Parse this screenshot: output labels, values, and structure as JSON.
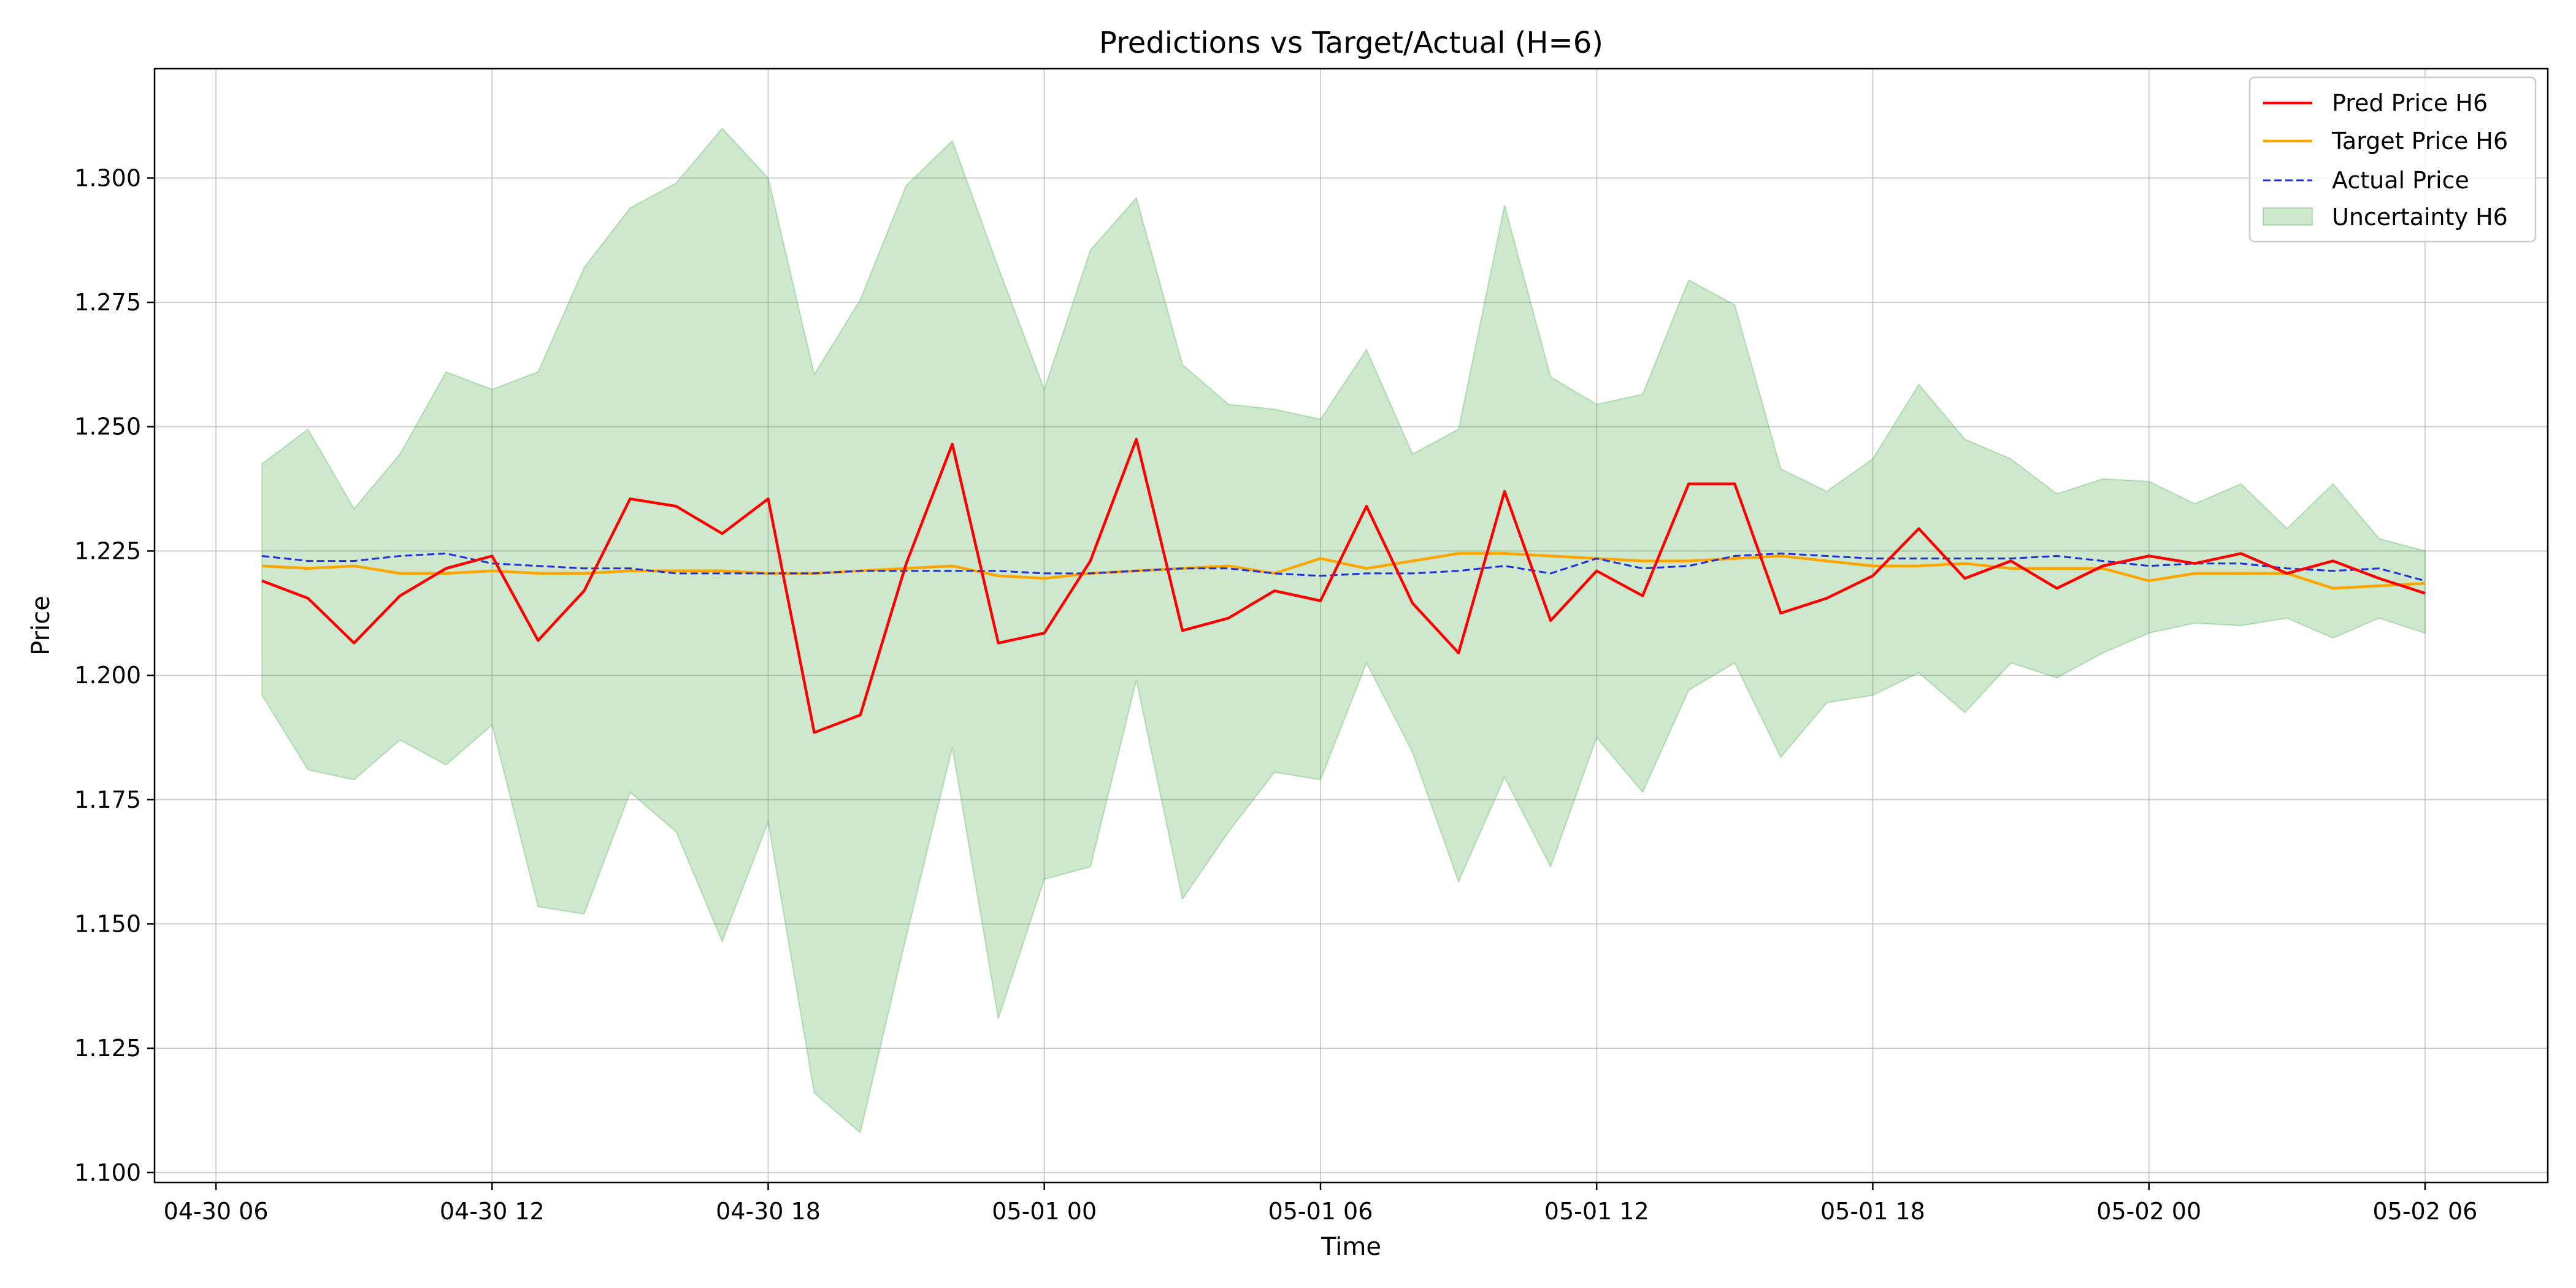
{
  "chart_data": {
    "type": "line",
    "title": "Predictions vs Target/Actual (H=6)",
    "xlabel": "Time",
    "ylabel": "Price",
    "ylim": [
      1.098,
      1.322
    ],
    "yticks": [
      1.1,
      1.125,
      1.15,
      1.175,
      1.2,
      1.225,
      1.25,
      1.275,
      1.3
    ],
    "ytick_labels": [
      "1.100",
      "1.125",
      "1.150",
      "1.175",
      "1.200",
      "1.225",
      "1.250",
      "1.275",
      "1.300"
    ],
    "xlim": [
      "2026-04-30 04:40",
      "2026-05-02 08:40"
    ],
    "xticks": [
      "2026-04-30 06:00",
      "2026-04-30 12:00",
      "2026-04-30 18:00",
      "2026-05-01 00:00",
      "2026-05-01 06:00",
      "2026-05-01 12:00",
      "2026-05-01 18:00",
      "2026-05-02 00:00",
      "2026-05-02 06:00"
    ],
    "xtick_labels": [
      "04-30 06",
      "04-30 12",
      "04-30 18",
      "05-01 00",
      "05-01 06",
      "05-01 12",
      "05-01 18",
      "05-02 00",
      "05-02 06"
    ],
    "grid": true,
    "legend_position": "top-right",
    "x": [
      "2026-04-30 07:00",
      "2026-04-30 08:00",
      "2026-04-30 09:00",
      "2026-04-30 10:00",
      "2026-04-30 11:00",
      "2026-04-30 12:00",
      "2026-04-30 13:00",
      "2026-04-30 14:00",
      "2026-04-30 15:00",
      "2026-04-30 16:00",
      "2026-04-30 17:00",
      "2026-04-30 18:00",
      "2026-04-30 19:00",
      "2026-04-30 20:00",
      "2026-04-30 21:00",
      "2026-04-30 22:00",
      "2026-04-30 23:00",
      "2026-05-01 00:00",
      "2026-05-01 01:00",
      "2026-05-01 02:00",
      "2026-05-01 03:00",
      "2026-05-01 04:00",
      "2026-05-01 05:00",
      "2026-05-01 06:00",
      "2026-05-01 07:00",
      "2026-05-01 08:00",
      "2026-05-01 09:00",
      "2026-05-01 10:00",
      "2026-05-01 11:00",
      "2026-05-01 12:00",
      "2026-05-01 13:00",
      "2026-05-01 14:00",
      "2026-05-01 15:00",
      "2026-05-01 16:00",
      "2026-05-01 17:00",
      "2026-05-01 18:00",
      "2026-05-01 19:00",
      "2026-05-01 20:00",
      "2026-05-01 21:00",
      "2026-05-01 22:00",
      "2026-05-01 23:00",
      "2026-05-02 00:00",
      "2026-05-02 01:00",
      "2026-05-02 02:00",
      "2026-05-02 03:00",
      "2026-05-02 04:00",
      "2026-05-02 05:00",
      "2026-05-02 06:00"
    ],
    "series": [
      {
        "name": "Pred Price H6",
        "kind": "line",
        "color": "#ff0000",
        "dash": "solid",
        "values": [
          1.219,
          1.2155,
          1.2065,
          1.216,
          1.2215,
          1.224,
          1.207,
          1.217,
          1.2355,
          1.234,
          1.2285,
          1.2355,
          1.1885,
          1.192,
          1.2225,
          1.2465,
          1.2065,
          1.2085,
          1.223,
          1.2475,
          1.209,
          1.2115,
          1.217,
          1.215,
          1.234,
          1.2145,
          1.2045,
          1.237,
          1.211,
          1.221,
          1.216,
          1.2385,
          1.2385,
          1.2125,
          1.2155,
          1.22,
          1.2295,
          1.2195,
          1.223,
          1.2175,
          1.222,
          1.224,
          1.2225,
          1.2245,
          1.2205,
          1.223,
          1.2195,
          1.2165
        ]
      },
      {
        "name": "Target Price H6",
        "kind": "line",
        "color": "#ffa500",
        "dash": "solid",
        "values": [
          1.222,
          1.2215,
          1.222,
          1.2205,
          1.2205,
          1.221,
          1.2205,
          1.2205,
          1.221,
          1.221,
          1.221,
          1.2205,
          1.2205,
          1.221,
          1.2215,
          1.222,
          1.22,
          1.2195,
          1.2205,
          1.221,
          1.2215,
          1.222,
          1.2205,
          1.2235,
          1.2215,
          1.223,
          1.2245,
          1.2245,
          1.224,
          1.2235,
          1.223,
          1.223,
          1.2235,
          1.224,
          1.223,
          1.222,
          1.222,
          1.2225,
          1.2215,
          1.2215,
          1.2215,
          1.219,
          1.2205,
          1.2205,
          1.2205,
          1.2175,
          1.218,
          1.2185
        ]
      },
      {
        "name": "Actual Price",
        "kind": "line",
        "color": "#1f2fe0",
        "dash": "dashed",
        "values": [
          1.224,
          1.223,
          1.223,
          1.224,
          1.2245,
          1.2225,
          1.222,
          1.2215,
          1.2215,
          1.2205,
          1.2205,
          1.2205,
          1.2205,
          1.221,
          1.221,
          1.221,
          1.221,
          1.2205,
          1.2205,
          1.221,
          1.2215,
          1.2215,
          1.2205,
          1.22,
          1.2205,
          1.2205,
          1.221,
          1.222,
          1.2205,
          1.2235,
          1.2215,
          1.222,
          1.224,
          1.2245,
          1.224,
          1.2235,
          1.2235,
          1.2235,
          1.2235,
          1.224,
          1.223,
          1.222,
          1.2225,
          1.2225,
          1.2215,
          1.221,
          1.2215,
          1.219
        ]
      }
    ],
    "band": {
      "name": "Uncertainty H6",
      "kind": "area",
      "color": "#2ca02c",
      "opacity": 0.24,
      "upper": [
        1.2425,
        1.2495,
        1.2335,
        1.2445,
        1.261,
        1.2575,
        1.261,
        1.282,
        1.294,
        1.299,
        1.31,
        1.3,
        1.2605,
        1.2755,
        1.2985,
        1.3075,
        1.282,
        1.2575,
        1.2855,
        1.296,
        1.2625,
        1.2545,
        1.2535,
        1.2515,
        1.2655,
        1.2445,
        1.2495,
        1.2945,
        1.26,
        1.2545,
        1.2565,
        1.2795,
        1.2745,
        1.2415,
        1.237,
        1.2435,
        1.2585,
        1.2475,
        1.2435,
        1.2365,
        1.2395,
        1.239,
        1.2345,
        1.2385,
        1.2295,
        1.2385,
        1.2275,
        1.225
      ],
      "lower": [
        1.196,
        1.181,
        1.179,
        1.187,
        1.182,
        1.19,
        1.1535,
        1.152,
        1.1765,
        1.1685,
        1.1465,
        1.1705,
        1.116,
        1.108,
        1.1475,
        1.1855,
        1.131,
        1.159,
        1.1615,
        1.199,
        1.155,
        1.1685,
        1.1805,
        1.179,
        1.2025,
        1.1845,
        1.1585,
        1.1795,
        1.1615,
        1.1875,
        1.1765,
        1.197,
        1.2025,
        1.1835,
        1.1945,
        1.196,
        1.2005,
        1.1925,
        1.2025,
        1.1995,
        1.2045,
        1.2085,
        1.2105,
        1.21,
        1.2115,
        1.2075,
        1.2115,
        1.2085
      ]
    },
    "legend": [
      "Pred Price H6",
      "Target Price H6",
      "Actual Price",
      "Uncertainty H6"
    ]
  }
}
